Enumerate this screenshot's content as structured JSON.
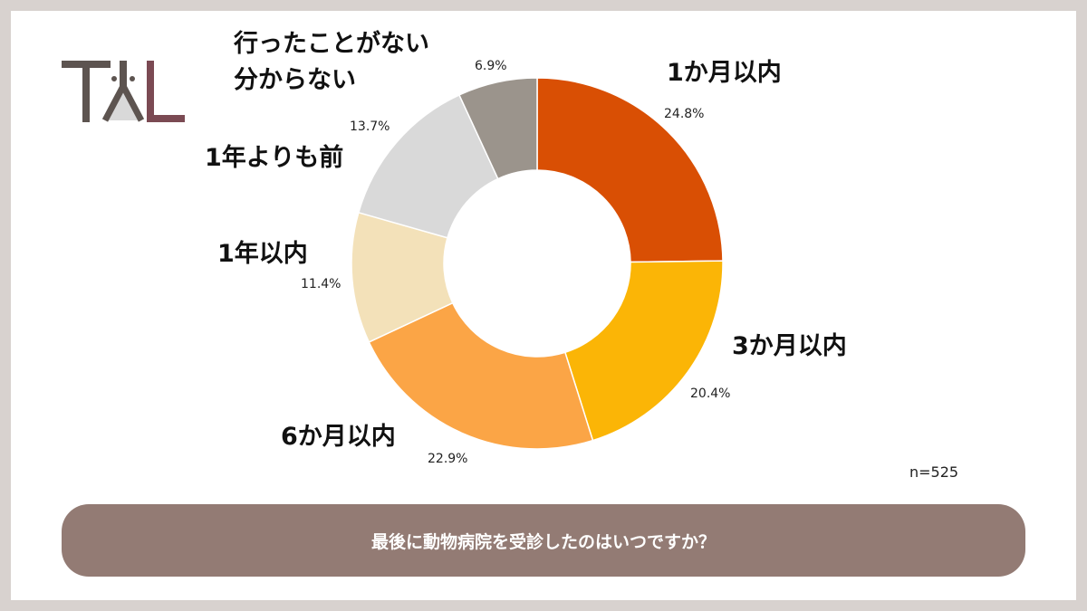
{
  "logo": {
    "text": "TAL"
  },
  "chart_data": {
    "type": "pie",
    "donut": true,
    "title": "最後に動物病院を受診したのはいつですか？",
    "sample_size": "n=525",
    "categories": [
      "1か月以内",
      "3か月以内",
      "6か月以内",
      "1年以内",
      "1年よりも前",
      "行ったことがない\n分からない"
    ],
    "values": [
      24.8,
      20.4,
      22.9,
      11.4,
      13.7,
      6.9
    ],
    "value_labels": [
      "24.8%",
      "20.4%",
      "22.9%",
      "11.4%",
      "13.7%",
      "6.9%"
    ],
    "colors": [
      "#d94f04",
      "#fbb506",
      "#fba546",
      "#f3e1b9",
      "#d9d9d9",
      "#9b948c"
    ]
  },
  "labels": {
    "cat5_line1": "行ったことがない",
    "cat5_line2": "分からない"
  }
}
